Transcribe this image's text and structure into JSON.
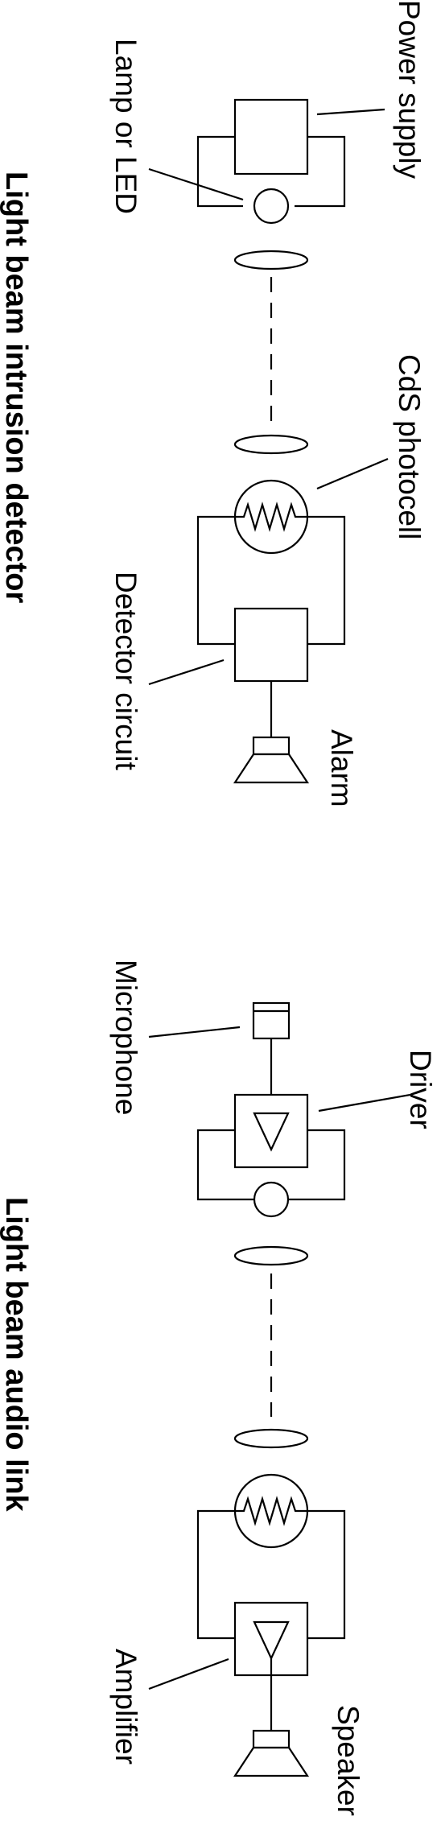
{
  "diagram": {
    "top": {
      "title": "Light beam intrusion detector",
      "labels": {
        "power_supply": "Power supply",
        "lamp_or_led": "Lamp or LED",
        "cds_photocell": "CdS photocell",
        "detector_circuit": "Detector circuit",
        "alarm": "Alarm"
      }
    },
    "bottom": {
      "title": "Light beam audio link",
      "labels": {
        "microphone": "Microphone",
        "driver": "Driver",
        "amplifier": "Amplifier",
        "speaker": "Speaker"
      }
    }
  }
}
